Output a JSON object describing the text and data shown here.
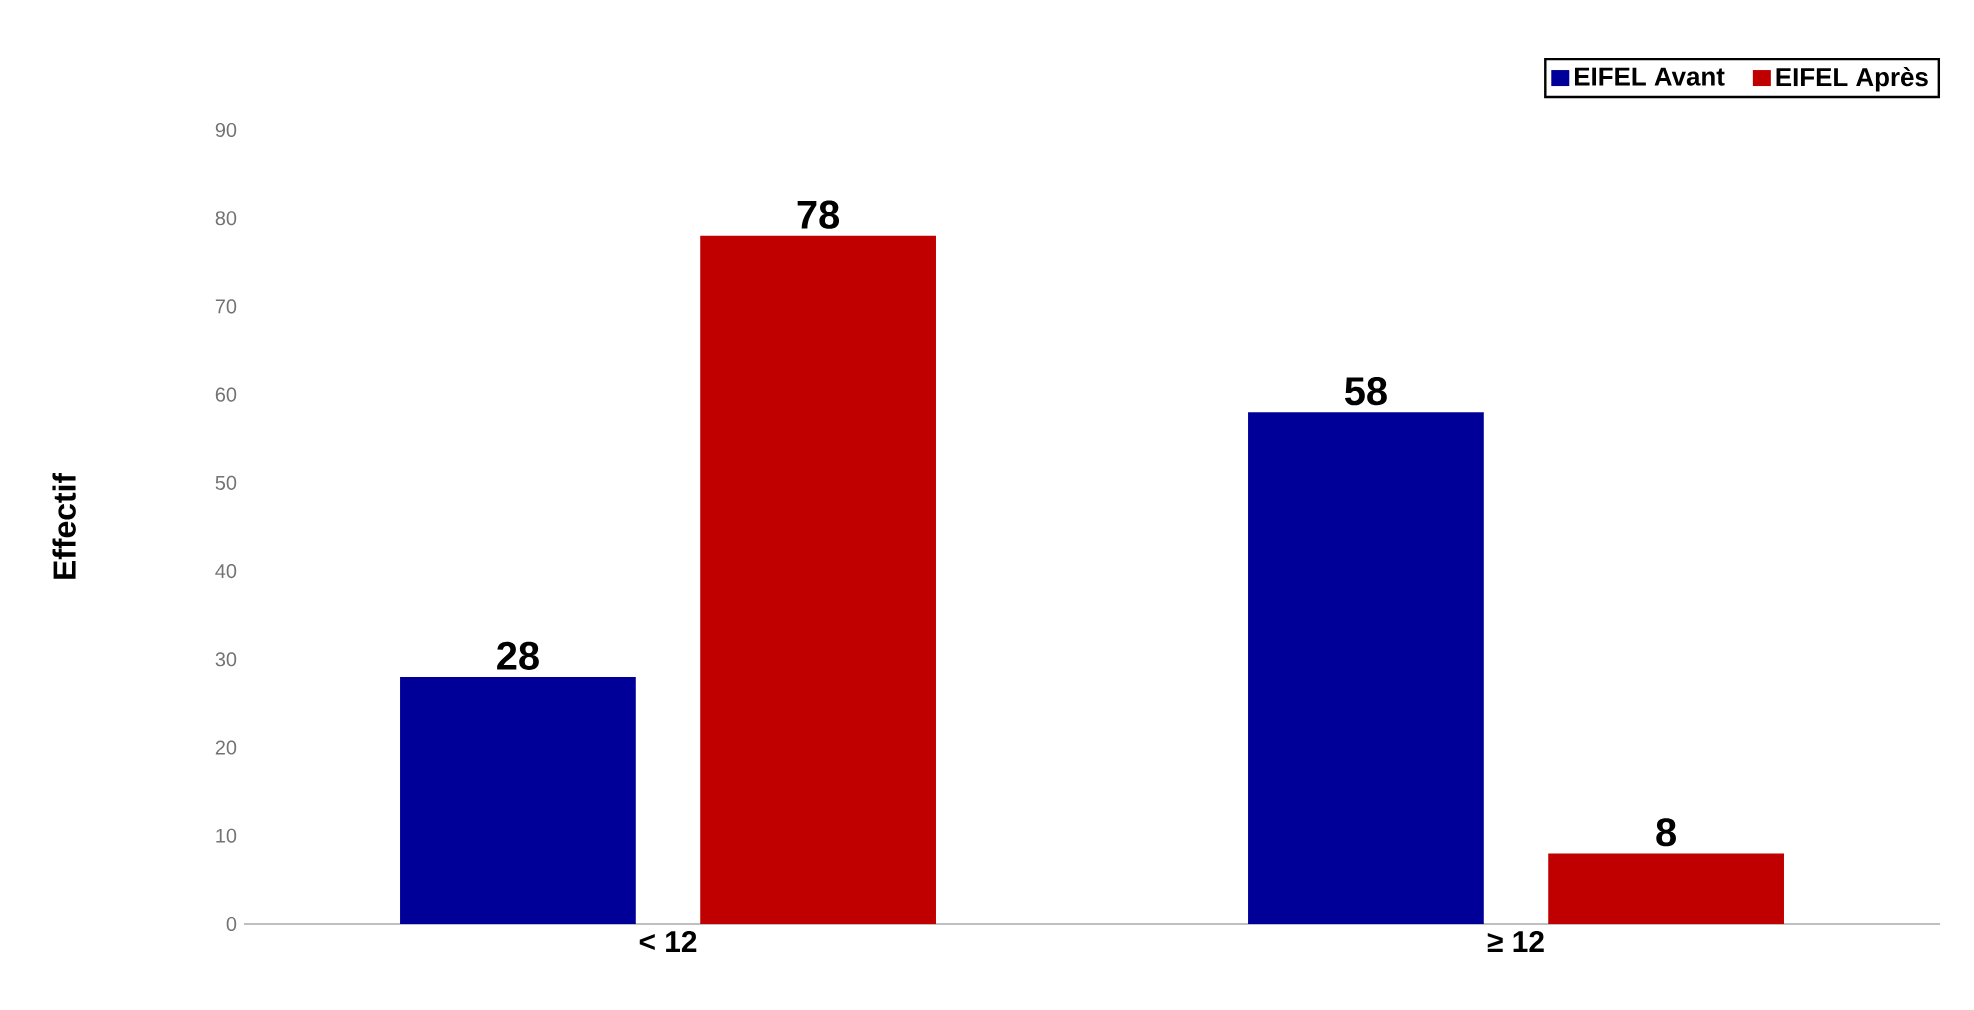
{
  "chart_data": {
    "type": "bar",
    "ylabel": "Effectif",
    "categories": [
      "< 12",
      "≥ 12"
    ],
    "series": [
      {
        "name": "EIFEL Avant",
        "color": "#000099",
        "values": [
          28,
          58
        ]
      },
      {
        "name": "EIFEL Après",
        "color": "#c00000",
        "values": [
          78,
          8
        ]
      }
    ],
    "ylim": [
      0,
      90
    ],
    "yticks": [
      0,
      10,
      20,
      30,
      40,
      50,
      60,
      70,
      80,
      90
    ],
    "data_labels": true,
    "legend": "top right",
    "grid": false
  }
}
